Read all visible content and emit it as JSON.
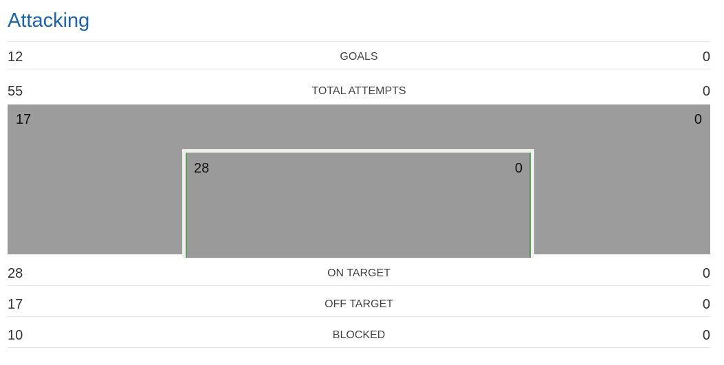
{
  "title": "Attacking",
  "rows": {
    "goals": {
      "label": "GOALS",
      "home": "12",
      "away": "0"
    },
    "total_attempts": {
      "label": "TOTAL ATTEMPTS",
      "home": "55",
      "away": "0"
    },
    "on_target": {
      "label": "ON TARGET",
      "home": "28",
      "away": "0"
    },
    "off_target": {
      "label": "OFF TARGET",
      "home": "17",
      "away": "0"
    },
    "blocked": {
      "label": "BLOCKED",
      "home": "10",
      "away": "0"
    }
  },
  "pitch": {
    "outside_home": "17",
    "outside_away": "0",
    "goal_home": "28",
    "goal_away": "0"
  },
  "colors": {
    "title": "#1a63b5",
    "pitch": "#9c9c9c",
    "goal_post": "#5c9a5c"
  }
}
